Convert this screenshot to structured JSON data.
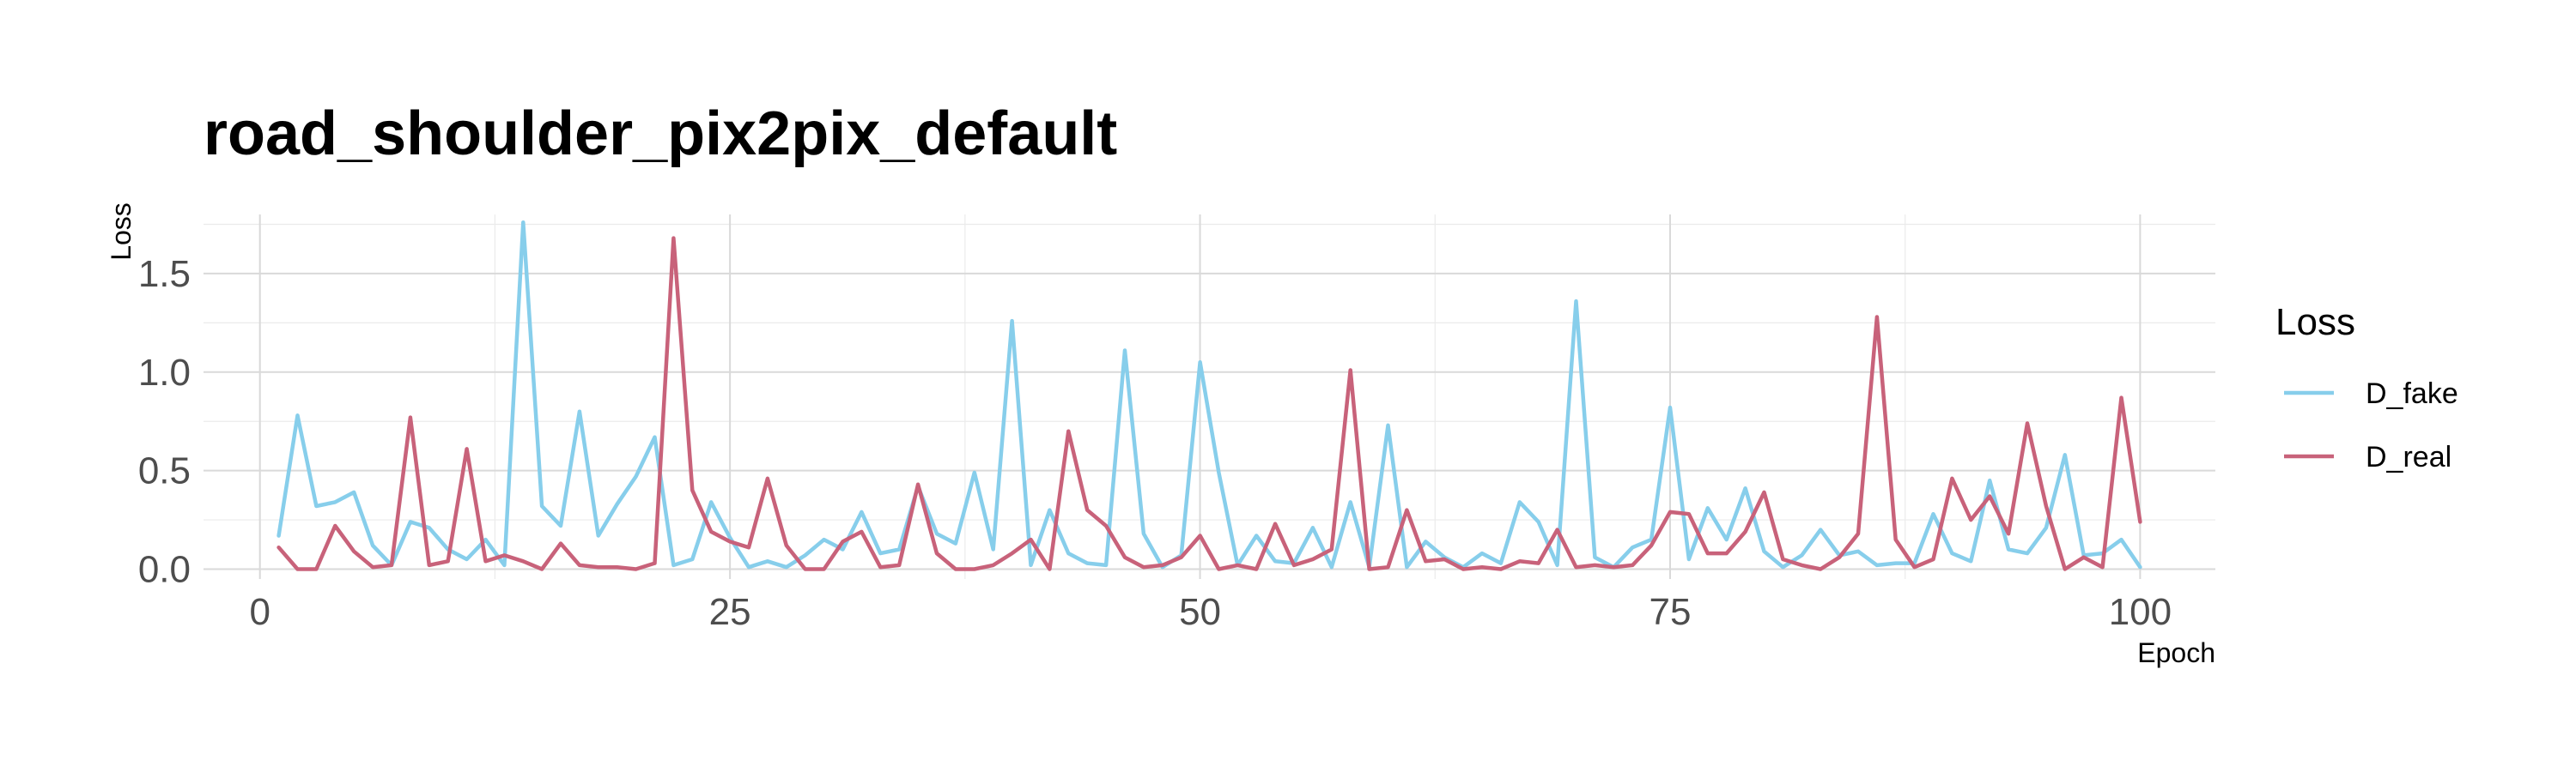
{
  "chart_data": {
    "type": "line",
    "title": "road_shoulder_pix2pix_default",
    "xlabel": "Epoch",
    "ylabel": "Loss",
    "xlim": [
      -3,
      104
    ],
    "ylim": [
      -0.05,
      1.8
    ],
    "x_ticks": [
      0,
      25,
      50,
      75,
      100
    ],
    "y_ticks": [
      0.0,
      0.5,
      1.0,
      1.5
    ],
    "y_tick_labels": [
      "0.0",
      "0.5",
      "1.0",
      "1.5"
    ],
    "grid": true,
    "legend": {
      "title": "Loss",
      "placement": "right"
    },
    "series": [
      {
        "name": "D_fake",
        "color": "#87CEEB",
        "x": [
          1,
          2,
          3,
          4,
          5,
          6,
          7,
          8,
          9,
          10,
          11,
          12,
          13,
          14,
          15,
          16,
          17,
          18,
          19,
          20,
          21,
          22,
          23,
          24,
          25,
          26,
          27,
          28,
          29,
          30,
          31,
          32,
          33,
          34,
          35,
          36,
          37,
          38,
          39,
          40,
          41,
          42,
          43,
          44,
          45,
          46,
          47,
          48,
          49,
          50,
          51,
          52,
          53,
          54,
          55,
          56,
          57,
          58,
          59,
          60,
          61,
          62,
          63,
          64,
          65,
          66,
          67,
          68,
          69,
          70,
          71,
          72,
          73,
          74,
          75,
          76,
          77,
          78,
          79,
          80,
          81,
          82,
          83,
          84,
          85,
          86,
          87,
          88,
          89,
          90,
          91,
          92,
          93,
          94,
          95,
          96,
          97,
          98,
          99,
          100
        ],
        "values": [
          0.17,
          0.78,
          0.32,
          0.34,
          0.39,
          0.12,
          0.02,
          0.24,
          0.21,
          0.1,
          0.05,
          0.15,
          0.02,
          1.76,
          0.32,
          0.22,
          0.8,
          0.17,
          0.33,
          0.47,
          0.67,
          0.02,
          0.05,
          0.34,
          0.16,
          0.01,
          0.04,
          0.01,
          0.07,
          0.15,
          0.1,
          0.29,
          0.08,
          0.1,
          0.42,
          0.18,
          0.13,
          0.49,
          0.1,
          1.26,
          0.02,
          0.3,
          0.08,
          0.03,
          0.02,
          1.11,
          0.18,
          0.01,
          0.07,
          1.05,
          0.49,
          0.02,
          0.17,
          0.04,
          0.03,
          0.21,
          0.01,
          0.34,
          0.01,
          0.73,
          0.01,
          0.14,
          0.06,
          0.01,
          0.08,
          0.03,
          0.34,
          0.24,
          0.02,
          1.36,
          0.06,
          0.01,
          0.11,
          0.15,
          0.82,
          0.05,
          0.31,
          0.15,
          0.41,
          0.09,
          0.01,
          0.07,
          0.2,
          0.07,
          0.09,
          0.02,
          0.03,
          0.03,
          0.28,
          0.08,
          0.04,
          0.45,
          0.1,
          0.08,
          0.21,
          0.58,
          0.07,
          0.08,
          0.15,
          0.01
        ]
      },
      {
        "name": "D_real",
        "color": "#C8627A",
        "x": [
          1,
          2,
          3,
          4,
          5,
          6,
          7,
          8,
          9,
          10,
          11,
          12,
          13,
          14,
          15,
          16,
          17,
          18,
          19,
          20,
          21,
          22,
          23,
          24,
          25,
          26,
          27,
          28,
          29,
          30,
          31,
          32,
          33,
          34,
          35,
          36,
          37,
          38,
          39,
          40,
          41,
          42,
          43,
          44,
          45,
          46,
          47,
          48,
          49,
          50,
          51,
          52,
          53,
          54,
          55,
          56,
          57,
          58,
          59,
          60,
          61,
          62,
          63,
          64,
          65,
          66,
          67,
          68,
          69,
          70,
          71,
          72,
          73,
          74,
          75,
          76,
          77,
          78,
          79,
          80,
          81,
          82,
          83,
          84,
          85,
          86,
          87,
          88,
          89,
          90,
          91,
          92,
          93,
          94,
          95,
          96,
          97,
          98,
          99,
          100
        ],
        "values": [
          0.11,
          0.0,
          0.0,
          0.22,
          0.09,
          0.01,
          0.02,
          0.77,
          0.02,
          0.04,
          0.61,
          0.04,
          0.07,
          0.04,
          0.0,
          0.13,
          0.02,
          0.01,
          0.01,
          0.0,
          0.03,
          1.68,
          0.4,
          0.19,
          0.14,
          0.11,
          0.46,
          0.12,
          0.0,
          0.0,
          0.14,
          0.19,
          0.01,
          0.02,
          0.43,
          0.08,
          0.0,
          0.0,
          0.02,
          0.08,
          0.15,
          0.0,
          0.7,
          0.3,
          0.22,
          0.06,
          0.01,
          0.02,
          0.06,
          0.17,
          0.0,
          0.02,
          0.0,
          0.23,
          0.02,
          0.05,
          0.1,
          1.01,
          0.0,
          0.01,
          0.3,
          0.04,
          0.05,
          0.0,
          0.01,
          0.0,
          0.04,
          0.03,
          0.2,
          0.01,
          0.02,
          0.01,
          0.02,
          0.12,
          0.29,
          0.28,
          0.08,
          0.08,
          0.19,
          0.39,
          0.05,
          0.02,
          0.0,
          0.06,
          0.18,
          1.28,
          0.15,
          0.01,
          0.05,
          0.46,
          0.25,
          0.37,
          0.18,
          0.74,
          0.32,
          0.0,
          0.06,
          0.01,
          0.87,
          0.24
        ]
      }
    ]
  }
}
